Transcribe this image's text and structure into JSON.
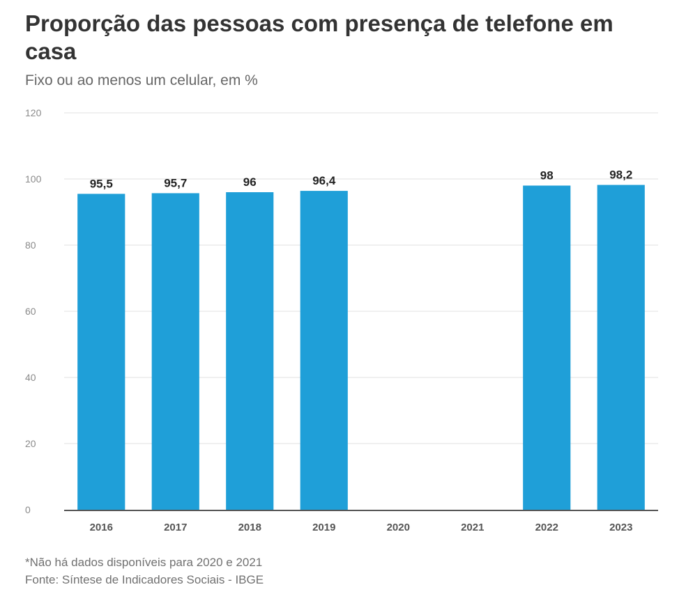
{
  "title": "Proporção das pessoas com presença de telefone em casa",
  "subtitle": "Fixo ou ao menos um celular, em %",
  "notes": {
    "footnote": "*Não há dados disponíveis para 2020 e 2021",
    "source": "Fonte: Síntese de Indicadores Sociais - IBGE"
  },
  "colors": {
    "bar": "#1f9fd8",
    "grid": "#e6e6e6",
    "axis": "#555555"
  },
  "chart_data": {
    "type": "bar",
    "categories": [
      "2016",
      "2017",
      "2018",
      "2019",
      "2020",
      "2021",
      "2022",
      "2023"
    ],
    "values": [
      95.5,
      95.7,
      96,
      96.4,
      null,
      null,
      98,
      98.2
    ],
    "value_labels": [
      "95,5",
      "95,7",
      "96",
      "96,4",
      "",
      "",
      "98",
      "98,2"
    ],
    "ylim": [
      0,
      120
    ],
    "yticks": [
      0,
      20,
      40,
      60,
      80,
      100,
      120
    ],
    "grid": true,
    "legend": "none",
    "xlabel": "",
    "ylabel": ""
  }
}
